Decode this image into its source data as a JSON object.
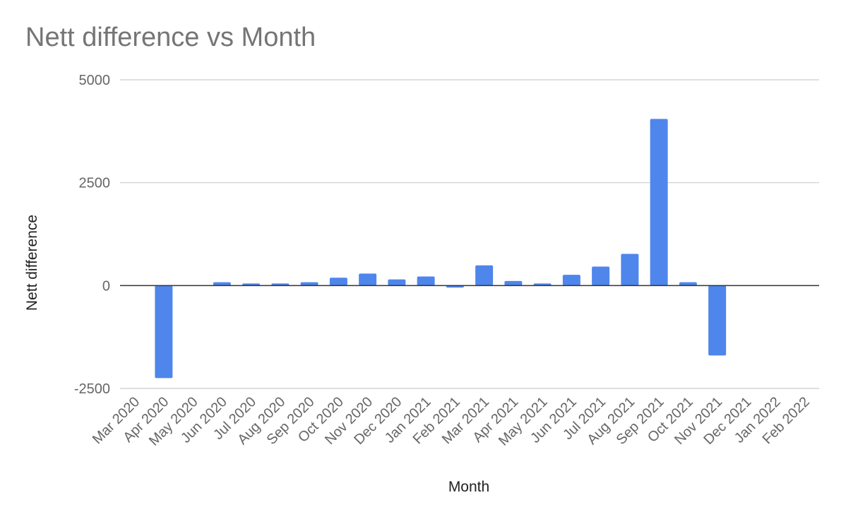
{
  "chart_data": {
    "type": "bar",
    "title": "Nett difference vs Month",
    "xlabel": "Month",
    "ylabel": "Nett difference",
    "categories": [
      "Mar 2020",
      "Apr 2020",
      "May 2020",
      "Jun 2020",
      "Jul 2020",
      "Aug 2020",
      "Sep 2020",
      "Oct 2020",
      "Nov 2020",
      "Dec 2020",
      "Jan 2021",
      "Feb 2021",
      "Mar 2021",
      "Apr 2021",
      "May 2021",
      "Jun 2021",
      "Jul 2021",
      "Aug 2021",
      "Sep 2021",
      "Oct 2021",
      "Nov 2021",
      "Dec 2021",
      "Jan 2022",
      "Feb 2022"
    ],
    "values": [
      0,
      -2250,
      0,
      80,
      50,
      50,
      80,
      190,
      290,
      150,
      220,
      -50,
      490,
      110,
      50,
      260,
      460,
      770,
      4050,
      80,
      -1700,
      0,
      0,
      0
    ],
    "ylim": [
      -2500,
      5000
    ],
    "yticks": [
      -2500,
      0,
      2500,
      5000
    ],
    "grid": true,
    "legend": "none",
    "bar_color": "#4f86ec",
    "gridline_color": "#cccccc",
    "zero_line_color": "#333333"
  }
}
